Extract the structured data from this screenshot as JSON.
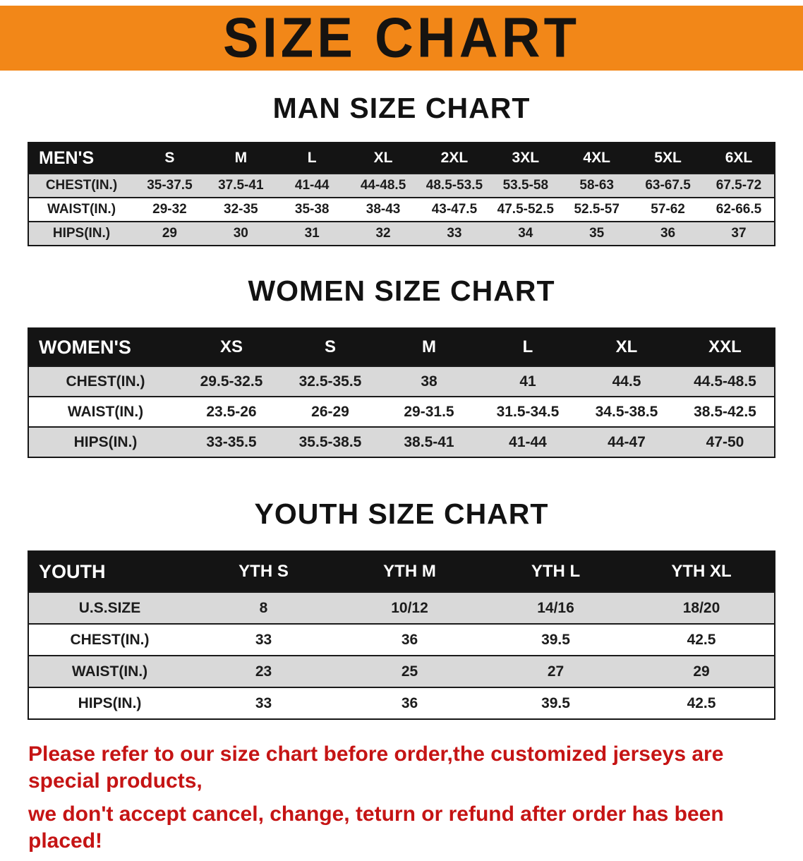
{
  "banner": {
    "title": "SIZE CHART"
  },
  "colors": {
    "banner_bg": "#f28718",
    "table_header_bg": "#141414",
    "stripe_bg": "#d9d9d9",
    "note_text": "#c51414"
  },
  "sections": [
    {
      "id": "men",
      "heading": "MAN SIZE CHART",
      "table": {
        "header": [
          "MEN'S",
          "S",
          "M",
          "L",
          "XL",
          "2XL",
          "3XL",
          "4XL",
          "5XL",
          "6XL"
        ],
        "rows": [
          [
            "CHEST(IN.)",
            "35-37.5",
            "37.5-41",
            "41-44",
            "44-48.5",
            "48.5-53.5",
            "53.5-58",
            "58-63",
            "63-67.5",
            "67.5-72"
          ],
          [
            "WAIST(IN.)",
            "29-32",
            "32-35",
            "35-38",
            "38-43",
            "43-47.5",
            "47.5-52.5",
            "52.5-57",
            "57-62",
            "62-66.5"
          ],
          [
            "HIPS(IN.)",
            "29",
            "30",
            "31",
            "32",
            "33",
            "34",
            "35",
            "36",
            "37"
          ]
        ]
      }
    },
    {
      "id": "women",
      "heading": "WOMEN SIZE CHART",
      "table": {
        "header": [
          "WOMEN'S",
          "XS",
          "S",
          "M",
          "L",
          "XL",
          "XXL"
        ],
        "rows": [
          [
            "CHEST(IN.)",
            "29.5-32.5",
            "32.5-35.5",
            "38",
            "41",
            "44.5",
            "44.5-48.5"
          ],
          [
            "WAIST(IN.)",
            "23.5-26",
            "26-29",
            "29-31.5",
            "31.5-34.5",
            "34.5-38.5",
            "38.5-42.5"
          ],
          [
            "HIPS(IN.)",
            "33-35.5",
            "35.5-38.5",
            "38.5-41",
            "41-44",
            "44-47",
            "47-50"
          ]
        ]
      }
    },
    {
      "id": "youth",
      "heading": "YOUTH SIZE CHART",
      "table": {
        "header": [
          "YOUTH",
          "YTH S",
          "YTH M",
          "YTH L",
          "YTH XL"
        ],
        "rows": [
          [
            "U.S.SIZE",
            "8",
            "10/12",
            "14/16",
            "18/20"
          ],
          [
            "CHEST(IN.)",
            "33",
            "36",
            "39.5",
            "42.5"
          ],
          [
            "WAIST(IN.)",
            "23",
            "25",
            "27",
            "29"
          ],
          [
            "HIPS(IN.)",
            "33",
            "36",
            "39.5",
            "42.5"
          ]
        ]
      }
    }
  ],
  "note": {
    "line1": "Please refer to our size chart before order,the customized jerseys are special products,",
    "line2": "we don't accept cancel, change, teturn or refund after order has been placed!"
  }
}
